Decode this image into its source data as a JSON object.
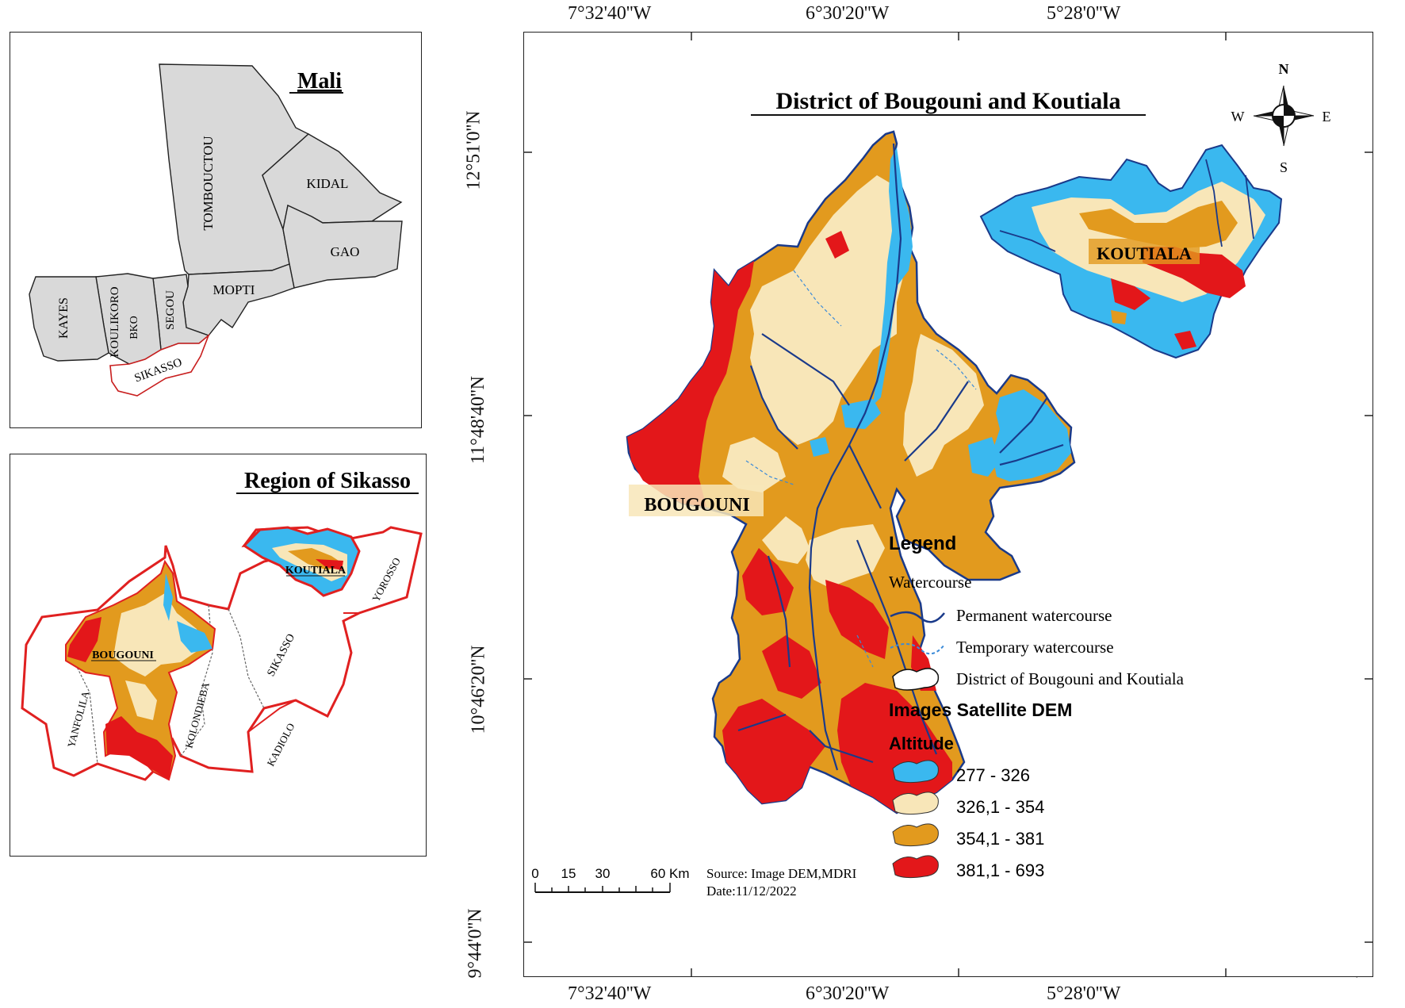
{
  "inset_mali": {
    "title": "Mali",
    "regions": [
      "TOMBOUCTOU",
      "KIDAL",
      "GAO",
      "MOPTI",
      "KAYES",
      "KOULIKORO",
      "BKO",
      "SEGOU",
      "SIKASSO"
    ]
  },
  "inset_sikasso": {
    "title": "Region of Sikasso",
    "districts": [
      "KOUTIALA",
      "YOROSSO",
      "BOUGOUNI",
      "SIKASSO",
      "YANFOLILA",
      "KOLONDIEBA",
      "KADIOLO"
    ]
  },
  "main_map": {
    "title": "District of Bougouni and Koutiala",
    "labels": {
      "bougouni": "BOUGOUNI",
      "koutiala": "KOUTIALA"
    },
    "graticule": {
      "lon_labels": [
        "7°32'40''W",
        "6°30'20''W",
        "5°28'0''W"
      ],
      "lat_labels": [
        "12°51'0''N",
        "11°48'40''N",
        "10°46'20''N",
        "9°44'0''N"
      ]
    },
    "compass": {
      "n": "N",
      "s": "S",
      "e": "E",
      "w": "W"
    },
    "scale_bar": {
      "ticks": [
        "0",
        "15",
        "30",
        "60 Km"
      ]
    },
    "source": "Source: Image DEM,MDRI",
    "date": "Date:11/12/2022"
  },
  "legend": {
    "title": "Legend",
    "watercourse_heading": "Watercourse",
    "permanent": "Permanent watercourse",
    "temporary": "Temporary watercourse",
    "district": "District of Bougouni and Koutiala",
    "images_heading": "Images Satellite DEM",
    "altitude_heading": "Altitude",
    "classes": [
      {
        "label": "277 - 326",
        "color": "#3ab8ef"
      },
      {
        "label": "326,1 - 354",
        "color": "#f8e6b8"
      },
      {
        "label": "354,1 - 381",
        "color": "#e29a1e"
      },
      {
        "label": "381,1 - 693",
        "color": "#e3171a"
      }
    ]
  },
  "colors": {
    "frame": "#222222",
    "region_fill": "#d9d9d9",
    "sikasso_outline": "#e02020",
    "permanent_water": "#1a3a8a",
    "temporary_water": "#3a8ad8"
  }
}
